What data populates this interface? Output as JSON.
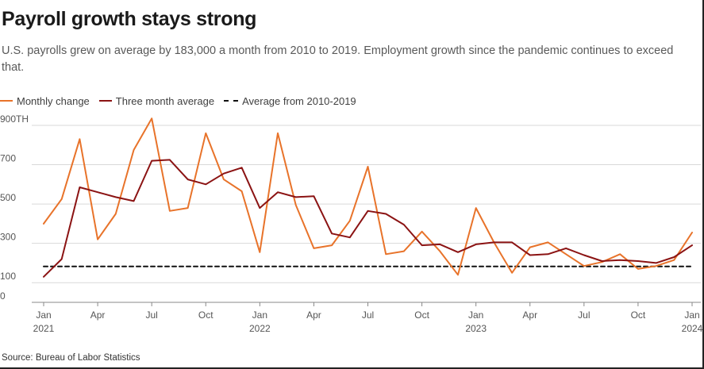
{
  "title": "Payroll growth stays strong",
  "subtitle": "U.S. payrolls grew on average by 183,000 a month from 2010 to 2019. Employment growth since the pandemic continues to exceed that.",
  "source": "Source: Bureau of Labor Statistics",
  "colors": {
    "monthly": "#e8732a",
    "three_month": "#8b1313",
    "average": "#111111",
    "grid": "#d9d9d9"
  },
  "legend": [
    {
      "label": "Monthly change",
      "style": "solid",
      "color": "#e8732a"
    },
    {
      "label": "Three month average",
      "style": "solid",
      "color": "#8b1313"
    },
    {
      "label": "Average from 2010-2019",
      "style": "dashed",
      "color": "#111111"
    }
  ],
  "chart_data": {
    "type": "line",
    "title": "Payroll growth stays strong",
    "xlabel": "",
    "ylabel": "",
    "ylim": [
      0,
      1000
    ],
    "yticks": [
      0,
      100,
      300,
      500,
      700,
      900
    ],
    "ytick_labels": [
      "0",
      "100",
      "300",
      "500",
      "700",
      "900TH"
    ],
    "xticks": [
      {
        "index": 0,
        "month": "Jan",
        "year": "2021"
      },
      {
        "index": 3,
        "month": "Apr",
        "year": ""
      },
      {
        "index": 6,
        "month": "Jul",
        "year": ""
      },
      {
        "index": 9,
        "month": "Oct",
        "year": ""
      },
      {
        "index": 12,
        "month": "Jan",
        "year": "2022"
      },
      {
        "index": 15,
        "month": "Apr",
        "year": ""
      },
      {
        "index": 18,
        "month": "Jul",
        "year": ""
      },
      {
        "index": 21,
        "month": "Oct",
        "year": ""
      },
      {
        "index": 24,
        "month": "Jan",
        "year": "2023"
      },
      {
        "index": 27,
        "month": "Apr",
        "year": ""
      },
      {
        "index": 30,
        "month": "Jul",
        "year": ""
      },
      {
        "index": 33,
        "month": "Oct",
        "year": ""
      },
      {
        "index": 36,
        "month": "Jan",
        "year": "2024"
      }
    ],
    "x": [
      "2021-01",
      "2021-02",
      "2021-03",
      "2021-04",
      "2021-05",
      "2021-06",
      "2021-07",
      "2021-08",
      "2021-09",
      "2021-10",
      "2021-11",
      "2021-12",
      "2022-01",
      "2022-02",
      "2022-03",
      "2022-04",
      "2022-05",
      "2022-06",
      "2022-07",
      "2022-08",
      "2022-09",
      "2022-10",
      "2022-11",
      "2022-12",
      "2023-01",
      "2023-02",
      "2023-03",
      "2023-04",
      "2023-05",
      "2023-06",
      "2023-07",
      "2023-08",
      "2023-09",
      "2023-10",
      "2023-11",
      "2023-12",
      "2024-01"
    ],
    "series": [
      {
        "name": "Monthly change",
        "color": "#e8732a",
        "values": [
          400,
          525,
          830,
          320,
          450,
          775,
          935,
          465,
          480,
          860,
          625,
          565,
          255,
          860,
          495,
          275,
          290,
          415,
          690,
          245,
          260,
          360,
          260,
          140,
          480,
          305,
          150,
          280,
          305,
          245,
          185,
          205,
          245,
          170,
          185,
          215,
          355
        ]
      },
      {
        "name": "Three month average",
        "color": "#8b1313",
        "values": [
          130,
          220,
          585,
          560,
          535,
          515,
          720,
          725,
          625,
          600,
          655,
          685,
          480,
          560,
          535,
          540,
          350,
          330,
          465,
          450,
          395,
          290,
          295,
          255,
          295,
          305,
          305,
          240,
          245,
          275,
          240,
          210,
          215,
          210,
          200,
          230,
          290
        ]
      },
      {
        "name": "Average from 2010-2019",
        "color": "#111111",
        "style": "dashed",
        "values": [
          183,
          183,
          183,
          183,
          183,
          183,
          183,
          183,
          183,
          183,
          183,
          183,
          183,
          183,
          183,
          183,
          183,
          183,
          183,
          183,
          183,
          183,
          183,
          183,
          183,
          183,
          183,
          183,
          183,
          183,
          183,
          183,
          183,
          183,
          183,
          183,
          183
        ]
      }
    ],
    "grid": true,
    "legend_position": "top-left"
  }
}
